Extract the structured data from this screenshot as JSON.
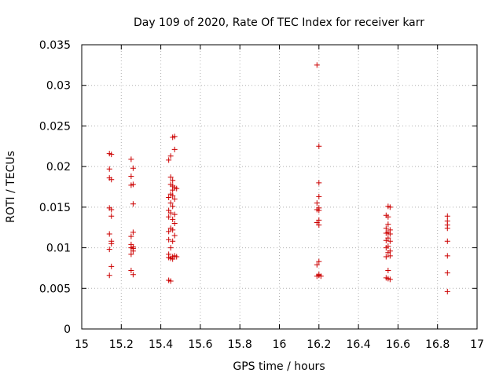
{
  "chart_data": {
    "type": "scatter",
    "title": "Day 109 of 2020, Rate Of TEC Index for receiver karr",
    "xlabel": "GPS time / hours",
    "ylabel": "ROTI / TECUs",
    "xlim": [
      15,
      17
    ],
    "ylim": [
      0,
      0.035
    ],
    "xticks": [
      15,
      15.2,
      15.4,
      15.6,
      15.8,
      16,
      16.2,
      16.4,
      16.6,
      16.8,
      17
    ],
    "xtick_labels": [
      "15",
      "15.2",
      "15.4",
      "15.6",
      "15.8",
      "16",
      "16.2",
      "16.4",
      "16.6",
      "16.8",
      "17"
    ],
    "yticks": [
      0,
      0.005,
      0.01,
      0.015,
      0.02,
      0.025,
      0.03,
      0.035
    ],
    "ytick_labels": [
      "0",
      "0.005",
      "0.01",
      "0.015",
      "0.02",
      "0.025",
      "0.03",
      "0.035"
    ],
    "grid": true,
    "marker": "+",
    "color": "#cc0000",
    "points": [
      [
        15.14,
        0.0216
      ],
      [
        15.15,
        0.0215
      ],
      [
        15.14,
        0.0197
      ],
      [
        15.14,
        0.0186
      ],
      [
        15.15,
        0.0184
      ],
      [
        15.14,
        0.0149
      ],
      [
        15.15,
        0.0147
      ],
      [
        15.15,
        0.0139
      ],
      [
        15.14,
        0.0117
      ],
      [
        15.15,
        0.0108
      ],
      [
        15.15,
        0.0105
      ],
      [
        15.14,
        0.0098
      ],
      [
        15.15,
        0.0077
      ],
      [
        15.14,
        0.0066
      ],
      [
        15.25,
        0.0209
      ],
      [
        15.26,
        0.0198
      ],
      [
        15.25,
        0.0188
      ],
      [
        15.25,
        0.0177
      ],
      [
        15.26,
        0.0178
      ],
      [
        15.26,
        0.0154
      ],
      [
        15.26,
        0.0119
      ],
      [
        15.25,
        0.0114
      ],
      [
        15.25,
        0.0104
      ],
      [
        15.26,
        0.0101
      ],
      [
        15.25,
        0.01
      ],
      [
        15.26,
        0.0099
      ],
      [
        15.25,
        0.0092
      ],
      [
        15.26,
        0.0096
      ],
      [
        15.25,
        0.0072
      ],
      [
        15.26,
        0.0067
      ],
      [
        15.47,
        0.0237
      ],
      [
        15.46,
        0.0236
      ],
      [
        15.47,
        0.0221
      ],
      [
        15.45,
        0.0213
      ],
      [
        15.44,
        0.0208
      ],
      [
        15.45,
        0.0187
      ],
      [
        15.46,
        0.0183
      ],
      [
        15.45,
        0.0178
      ],
      [
        15.46,
        0.0176
      ],
      [
        15.47,
        0.0174
      ],
      [
        15.48,
        0.0173
      ],
      [
        15.46,
        0.0171
      ],
      [
        15.45,
        0.0166
      ],
      [
        15.46,
        0.0164
      ],
      [
        15.44,
        0.0162
      ],
      [
        15.47,
        0.016
      ],
      [
        15.45,
        0.0155
      ],
      [
        15.46,
        0.0151
      ],
      [
        15.44,
        0.0146
      ],
      [
        15.45,
        0.0143
      ],
      [
        15.47,
        0.0141
      ],
      [
        15.44,
        0.0138
      ],
      [
        15.46,
        0.0135
      ],
      [
        15.47,
        0.013
      ],
      [
        15.45,
        0.0124
      ],
      [
        15.46,
        0.0122
      ],
      [
        15.44,
        0.012
      ],
      [
        15.47,
        0.0115
      ],
      [
        15.44,
        0.011
      ],
      [
        15.46,
        0.0108
      ],
      [
        15.45,
        0.01
      ],
      [
        15.44,
        0.0092
      ],
      [
        15.46,
        0.0089
      ],
      [
        15.47,
        0.009
      ],
      [
        15.45,
        0.0087
      ],
      [
        15.44,
        0.0088
      ],
      [
        15.46,
        0.0086
      ],
      [
        15.48,
        0.0089
      ],
      [
        15.44,
        0.006
      ],
      [
        15.45,
        0.0059
      ],
      [
        16.19,
        0.0325
      ],
      [
        16.2,
        0.0225
      ],
      [
        16.2,
        0.018
      ],
      [
        16.2,
        0.0163
      ],
      [
        16.19,
        0.0155
      ],
      [
        16.2,
        0.0149
      ],
      [
        16.19,
        0.0147
      ],
      [
        16.2,
        0.0146
      ],
      [
        16.2,
        0.0134
      ],
      [
        16.19,
        0.0131
      ],
      [
        16.2,
        0.0128
      ],
      [
        16.2,
        0.0083
      ],
      [
        16.19,
        0.0079
      ],
      [
        16.2,
        0.0067
      ],
      [
        16.19,
        0.0065
      ],
      [
        16.2,
        0.0066
      ],
      [
        16.21,
        0.0065
      ],
      [
        16.55,
        0.0151
      ],
      [
        16.56,
        0.015
      ],
      [
        16.54,
        0.014
      ],
      [
        16.55,
        0.0138
      ],
      [
        16.55,
        0.0129
      ],
      [
        16.54,
        0.0124
      ],
      [
        16.56,
        0.0122
      ],
      [
        16.55,
        0.0119
      ],
      [
        16.54,
        0.0118
      ],
      [
        16.56,
        0.0117
      ],
      [
        16.55,
        0.0112
      ],
      [
        16.54,
        0.0109
      ],
      [
        16.56,
        0.0108
      ],
      [
        16.55,
        0.0102
      ],
      [
        16.54,
        0.01
      ],
      [
        16.56,
        0.0096
      ],
      [
        16.55,
        0.0094
      ],
      [
        16.54,
        0.0089
      ],
      [
        16.56,
        0.009
      ],
      [
        16.55,
        0.0072
      ],
      [
        16.54,
        0.0063
      ],
      [
        16.55,
        0.0062
      ],
      [
        16.56,
        0.0061
      ],
      [
        16.85,
        0.0139
      ],
      [
        16.85,
        0.0133
      ],
      [
        16.85,
        0.0128
      ],
      [
        16.85,
        0.0124
      ],
      [
        16.85,
        0.0108
      ],
      [
        16.85,
        0.009
      ],
      [
        16.85,
        0.0069
      ],
      [
        16.85,
        0.0046
      ]
    ]
  }
}
